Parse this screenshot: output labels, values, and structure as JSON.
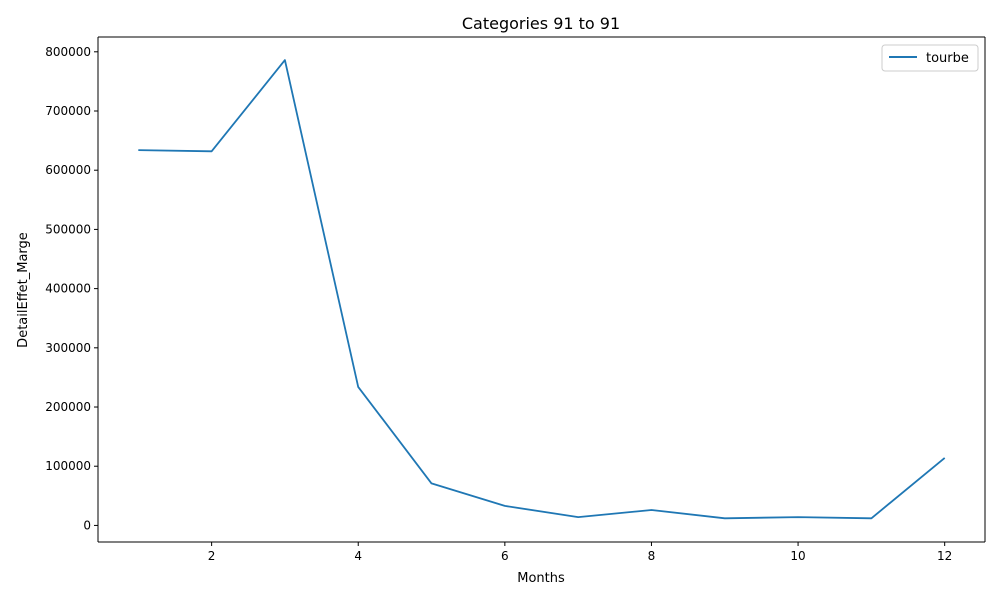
{
  "chart_data": {
    "type": "line",
    "title": "Categories 91 to 91",
    "xlabel": "Months",
    "ylabel": "DetailEffet_Marge",
    "xlim": [
      0.45,
      12.55
    ],
    "ylim": [
      -28000,
      825000
    ],
    "xticks": [
      2,
      4,
      6,
      8,
      10,
      12
    ],
    "yticks": [
      0,
      100000,
      200000,
      300000,
      400000,
      500000,
      600000,
      700000,
      800000
    ],
    "grid": false,
    "legend_position": "top-right",
    "series": [
      {
        "name": "tourbe",
        "color": "#1f77b4",
        "x": [
          1,
          2,
          3,
          4,
          5,
          6,
          7,
          8,
          9,
          10,
          11,
          12
        ],
        "y": [
          634000,
          632000,
          786000,
          234000,
          71000,
          33000,
          14000,
          26000,
          12000,
          14000,
          12000,
          114000
        ]
      }
    ]
  }
}
